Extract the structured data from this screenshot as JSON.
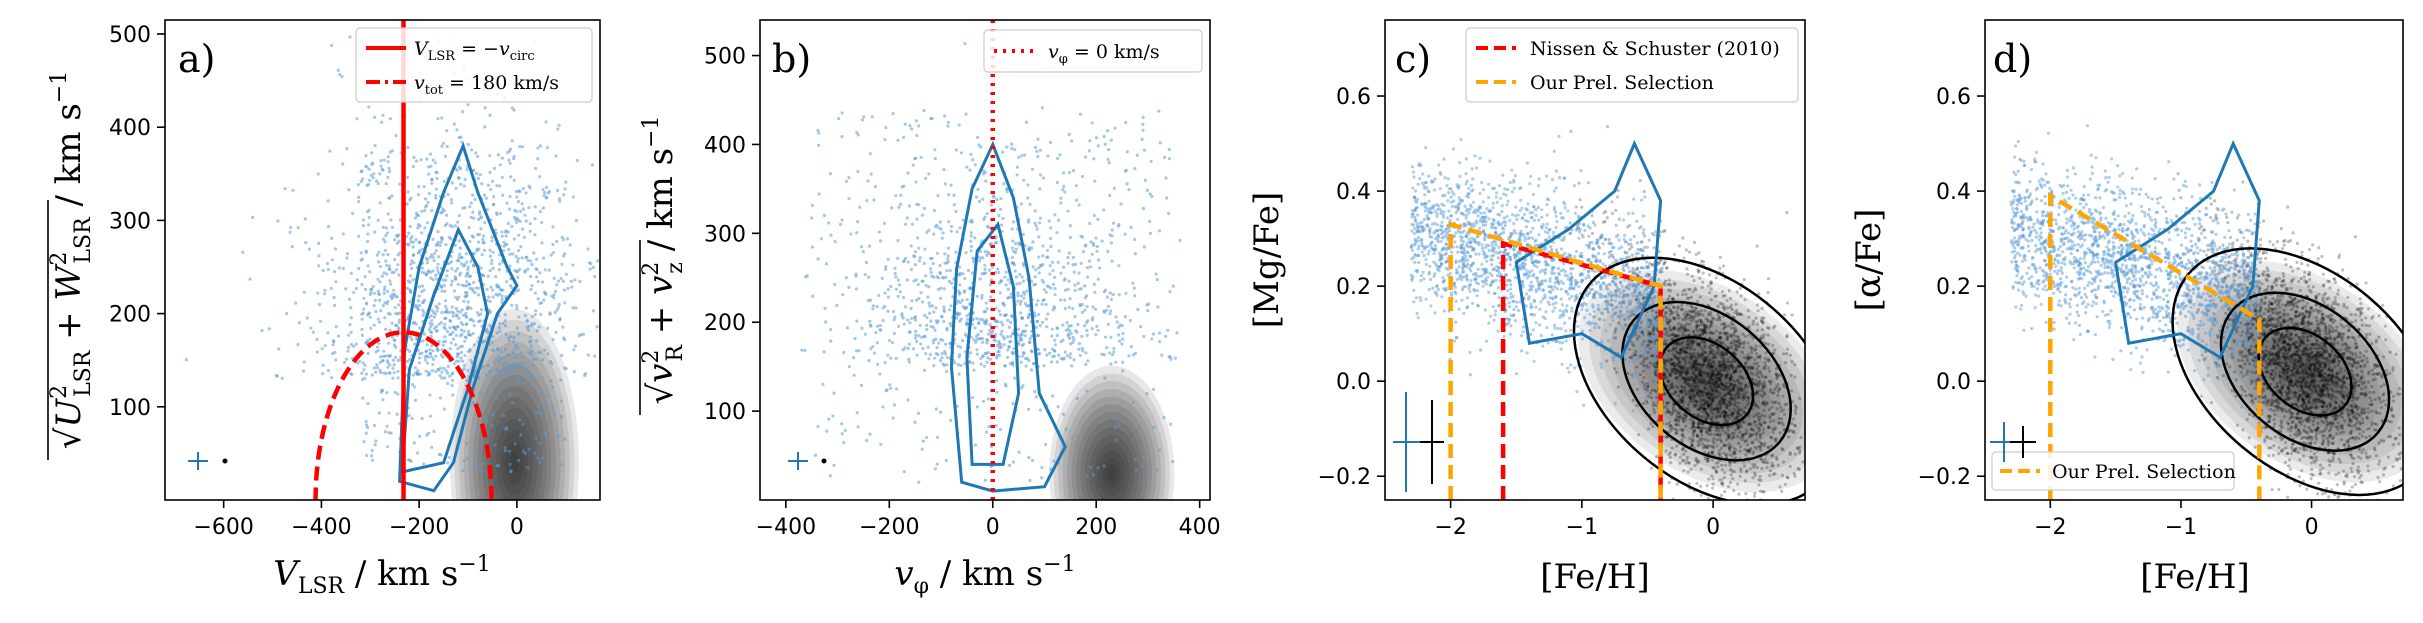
{
  "colors": {
    "scatter_blue": "#5b9bd5",
    "contour_blue": "#1f77b4",
    "red": "#ff0000",
    "orange": "#ffa500",
    "black": "#000000"
  },
  "chart_data": [
    {
      "panel": "a)",
      "type": "scatter",
      "xlabel": "V_LSR / km s^-1",
      "ylabel": "sqrt(U^2_LSR + W^2_LSR) / km s^-1",
      "xlim": [
        -720,
        170
      ],
      "ylim": [
        0,
        515
      ],
      "xticks": [
        -600,
        -400,
        -200,
        0
      ],
      "xtick_labels": [
        "−600",
        "−400",
        "−200",
        "0"
      ],
      "yticks": [
        100,
        200,
        300,
        400,
        500
      ],
      "ytick_labels": [
        "100",
        "200",
        "300",
        "400",
        "500"
      ],
      "legend_position": "top-right",
      "legend": [
        {
          "label": "V_LSR = −v_circ",
          "style": "solid",
          "color": "#ff0000"
        },
        {
          "label": "v_tot = 180 km/s",
          "style": "dashdot",
          "color": "#ff0000"
        }
      ],
      "lines": [
        {
          "kind": "vline",
          "x": -232,
          "color": "#ff0000",
          "style": "solid"
        },
        {
          "kind": "circle",
          "center": [
            -232,
            0
          ],
          "radius": 180,
          "color": "#ff0000",
          "style": "dashed"
        }
      ],
      "scatter_points_approx": 1600,
      "density_center": [
        -5,
        40
      ]
    },
    {
      "panel": "b)",
      "type": "scatter",
      "xlabel": "v_φ / km s^-1",
      "ylabel": "sqrt(v^2_R + v^2_z) / km s^-1",
      "xlim": [
        -450,
        420
      ],
      "ylim": [
        0,
        540
      ],
      "xticks": [
        -400,
        -200,
        0,
        200,
        400
      ],
      "xtick_labels": [
        "−400",
        "−200",
        "0",
        "200",
        "400"
      ],
      "yticks": [
        100,
        200,
        300,
        400,
        500
      ],
      "ytick_labels": [
        "100",
        "200",
        "300",
        "400",
        "500"
      ],
      "legend_position": "top-right",
      "legend": [
        {
          "label": "v_φ = 0 km/s",
          "style": "dotted",
          "color": "#ff0000"
        }
      ],
      "lines": [
        {
          "kind": "vline",
          "x": 0,
          "color": "#ff0000",
          "style": "dotted"
        }
      ],
      "scatter_points_approx": 1300,
      "density_center": [
        230,
        30
      ]
    },
    {
      "panel": "c)",
      "type": "scatter",
      "xlabel": "[Fe/H]",
      "ylabel": "[Mg/Fe]",
      "xlim": [
        -2.5,
        0.7
      ],
      "ylim": [
        -0.25,
        0.76
      ],
      "xticks": [
        -2,
        -1,
        0
      ],
      "xtick_labels": [
        "−2",
        "−1",
        "0"
      ],
      "yticks": [
        -0.2,
        0.0,
        0.2,
        0.4,
        0.6
      ],
      "ytick_labels": [
        "−0.2",
        "0.0",
        "0.2",
        "0.4",
        "0.6"
      ],
      "legend_position": "top-right",
      "legend": [
        {
          "label": "Nissen & Schuster (2010)",
          "style": "dashed",
          "color": "#ff0000"
        },
        {
          "label": "Our Prel. Selection",
          "style": "dashed",
          "color": "#ffa500"
        }
      ],
      "lines": [
        {
          "kind": "polyline",
          "color": "#ff0000",
          "style": "dashed",
          "points": [
            [
              -1.6,
              -0.25
            ],
            [
              -1.6,
              0.29
            ],
            [
              -0.4,
              0.2
            ],
            [
              -0.4,
              -0.25
            ]
          ]
        },
        {
          "kind": "polyline",
          "color": "#ffa500",
          "style": "dashed",
          "points": [
            [
              -2.0,
              -0.25
            ],
            [
              -2.0,
              0.33
            ],
            [
              -0.4,
              0.2
            ],
            [
              -0.4,
              -0.25
            ]
          ]
        }
      ],
      "scatter_points_approx": 2600,
      "density_center": [
        -0.05,
        0.0
      ]
    },
    {
      "panel": "d)",
      "type": "scatter",
      "xlabel": "[Fe/H]",
      "ylabel": "[α/Fe]",
      "xlim": [
        -2.5,
        0.7
      ],
      "ylim": [
        -0.25,
        0.76
      ],
      "xticks": [
        -2,
        -1,
        0
      ],
      "xtick_labels": [
        "−2",
        "−1",
        "0"
      ],
      "yticks": [
        -0.2,
        0.0,
        0.2,
        0.4,
        0.6
      ],
      "ytick_labels": [
        "−0.2",
        "0.0",
        "0.2",
        "0.4",
        "0.6"
      ],
      "legend_position": "bottom-left",
      "legend": [
        {
          "label": "Our Prel. Selection",
          "style": "dashed",
          "color": "#ffa500"
        }
      ],
      "lines": [
        {
          "kind": "polyline",
          "color": "#ffa500",
          "style": "dashed",
          "points": [
            [
              -2.0,
              -0.25
            ],
            [
              -2.0,
              0.39
            ],
            [
              -0.4,
              0.13
            ],
            [
              -0.4,
              -0.25
            ]
          ]
        }
      ],
      "scatter_points_approx": 2600,
      "density_center": [
        -0.05,
        0.02
      ]
    }
  ]
}
